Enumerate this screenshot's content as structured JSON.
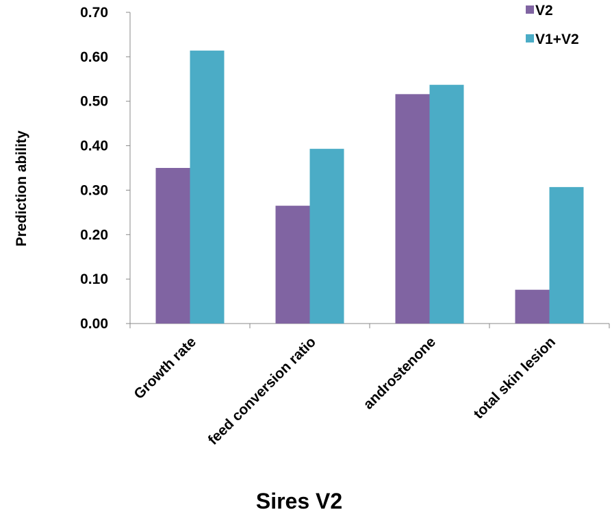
{
  "chart_data": {
    "type": "bar",
    "x_label": "Sires V2",
    "y_label": "Prediction ability",
    "categories": [
      "Growth rate",
      "feed conversion ratio",
      "androstenone",
      "total skin lesion"
    ],
    "series": [
      {
        "name": "V2",
        "color": "#8064a2",
        "values": [
          0.35,
          0.265,
          0.516,
          0.076
        ]
      },
      {
        "name": "V1+V2",
        "color": "#4bacc6",
        "values": [
          0.614,
          0.393,
          0.537,
          0.307
        ]
      }
    ],
    "ylim": [
      0,
      0.7
    ],
    "yticks": [
      {
        "value": 0,
        "label": "0.00"
      },
      {
        "value": 0.1,
        "label": "0.10"
      },
      {
        "value": 0.2,
        "label": "0.20"
      },
      {
        "value": 0.3,
        "label": "0.30"
      },
      {
        "value": 0.4,
        "label": "0.40"
      },
      {
        "value": 0.5,
        "label": "0.50"
      },
      {
        "value": 0.6,
        "label": "0.60"
      },
      {
        "value": 0.7,
        "label": "0.70"
      }
    ],
    "legend": "top-right"
  }
}
